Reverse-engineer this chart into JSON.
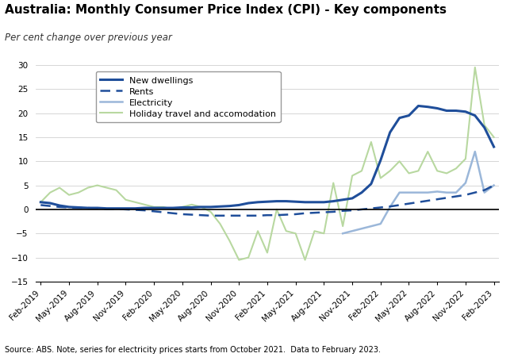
{
  "title": "Australia: Monthly Consumer Price Index (CPI) - Key components",
  "subtitle": "Per cent change over previous year",
  "source_note": "Source: ABS. Note, series for electricity prices starts from October 2021.  Data to February 2023.",
  "ylim": [
    -15,
    30
  ],
  "yticks": [
    -15,
    -10,
    -5,
    0,
    5,
    10,
    15,
    20,
    25,
    30
  ],
  "x_labels": [
    "Feb-2019",
    "May-2019",
    "Aug-2019",
    "Nov-2019",
    "Feb-2020",
    "May-2020",
    "Aug-2020",
    "Nov-2020",
    "Feb-2021",
    "May-2021",
    "Aug-2021",
    "Nov-2021",
    "Feb-2022",
    "May-2022",
    "Aug-2022",
    "Nov-2022",
    "Feb-2023"
  ],
  "new_dwellings_x": [
    0,
    1,
    2,
    3,
    4,
    5,
    6,
    7,
    8,
    9,
    10,
    11,
    12,
    13,
    14,
    15,
    16,
    17,
    18,
    19,
    20,
    21,
    22,
    23,
    24,
    25,
    26,
    27,
    28,
    29,
    30,
    31,
    32,
    33,
    34,
    35,
    36,
    37,
    38,
    39,
    40,
    41,
    42,
    43,
    44,
    45,
    46,
    47,
    48
  ],
  "new_dwellings_y": [
    1.5,
    1.3,
    0.8,
    0.5,
    0.4,
    0.3,
    0.3,
    0.2,
    0.2,
    0.2,
    0.2,
    0.3,
    0.3,
    0.3,
    0.3,
    0.4,
    0.4,
    0.5,
    0.5,
    0.6,
    0.7,
    0.9,
    1.3,
    1.5,
    1.6,
    1.7,
    1.7,
    1.6,
    1.5,
    1.5,
    1.5,
    1.7,
    2.0,
    2.3,
    3.5,
    5.3,
    10.2,
    16.0,
    19.0,
    19.5,
    21.5,
    21.3,
    21.0,
    20.5,
    20.5,
    20.3,
    19.5,
    17.0,
    13.0
  ],
  "rents_x": [
    0,
    1,
    2,
    3,
    4,
    5,
    6,
    7,
    8,
    9,
    10,
    11,
    12,
    13,
    14,
    15,
    16,
    17,
    18,
    19,
    20,
    21,
    22,
    23,
    24,
    25,
    26,
    27,
    28,
    29,
    30,
    31,
    32,
    33,
    34,
    35,
    36,
    37,
    38,
    39,
    40,
    41,
    42,
    43,
    44,
    45,
    46,
    47,
    48
  ],
  "rents_y": [
    0.9,
    0.7,
    0.5,
    0.4,
    0.3,
    0.3,
    0.2,
    0.1,
    0.1,
    0.0,
    -0.1,
    -0.2,
    -0.4,
    -0.6,
    -0.8,
    -1.0,
    -1.1,
    -1.2,
    -1.3,
    -1.3,
    -1.3,
    -1.3,
    -1.3,
    -1.3,
    -1.2,
    -1.2,
    -1.1,
    -1.0,
    -0.8,
    -0.7,
    -0.6,
    -0.5,
    -0.3,
    -0.2,
    0.0,
    0.2,
    0.4,
    0.6,
    0.9,
    1.2,
    1.5,
    1.8,
    2.1,
    2.4,
    2.7,
    3.0,
    3.5,
    4.0,
    5.0
  ],
  "electricity_x": [
    32,
    33,
    34,
    35,
    36,
    37,
    38,
    39,
    40,
    41,
    42,
    43,
    44,
    45,
    46,
    47,
    48
  ],
  "electricity_y": [
    -5.0,
    -4.5,
    -4.0,
    -3.5,
    -3.0,
    0.5,
    3.5,
    3.5,
    3.5,
    3.5,
    3.7,
    3.5,
    3.5,
    5.5,
    12.0,
    3.5,
    5.0
  ],
  "holiday_x": [
    0,
    1,
    2,
    3,
    4,
    5,
    6,
    7,
    8,
    9,
    10,
    11,
    12,
    13,
    14,
    15,
    16,
    17,
    18,
    19,
    20,
    21,
    22,
    23,
    24,
    25,
    26,
    27,
    28,
    29,
    30,
    31,
    32,
    33,
    34,
    35,
    36,
    37,
    38,
    39,
    40,
    41,
    42,
    43,
    44,
    45,
    46,
    47,
    48
  ],
  "holiday_y": [
    1.5,
    3.5,
    4.5,
    3.0,
    3.5,
    4.5,
    5.0,
    4.5,
    4.0,
    2.0,
    1.5,
    1.0,
    0.5,
    0.5,
    0.0,
    0.5,
    1.0,
    0.5,
    -0.5,
    -3.0,
    -6.5,
    -10.5,
    -10.0,
    -4.5,
    -9.0,
    0.0,
    -4.5,
    -5.0,
    -10.5,
    -4.5,
    -5.0,
    5.5,
    -3.5,
    7.0,
    8.0,
    14.0,
    6.5,
    8.0,
    10.0,
    7.5,
    8.0,
    12.0,
    8.0,
    7.5,
    8.5,
    10.5,
    29.5,
    17.5,
    15.0
  ],
  "nd_color": "#1F4E9A",
  "nd_linewidth": 2.2,
  "rents_color": "#1F4E9A",
  "rents_linewidth": 1.8,
  "elec_color": "#9BB7D9",
  "elec_linewidth": 1.8,
  "holiday_color": "#B8D8A0",
  "holiday_linewidth": 1.5,
  "background_color": "#FFFFFF",
  "grid_color": "#D0D0D0",
  "tick_label_fontsize": 7.5,
  "axis_label_fontsize": 8,
  "legend_fontsize": 8,
  "title_fontsize": 11,
  "subtitle_fontsize": 8.5
}
